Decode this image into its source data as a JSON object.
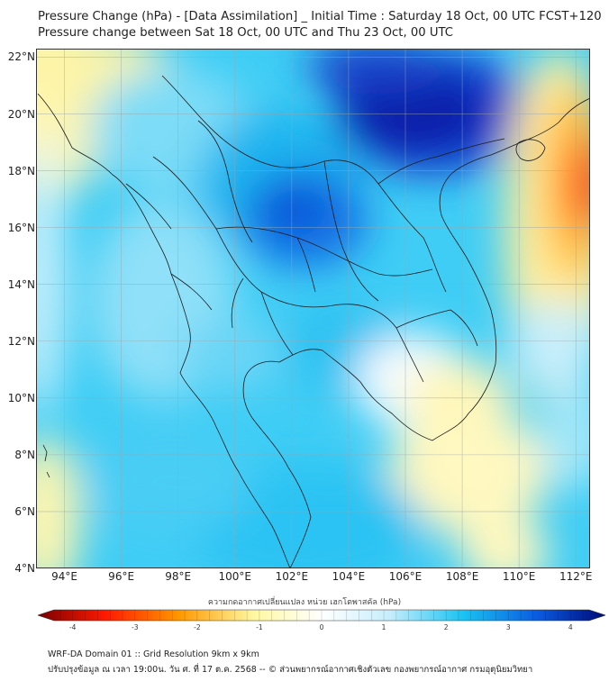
{
  "header": {
    "title_line1": "Pressure Change (hPa) - [Data Assimilation] _ Initial Time : Saturday 18 Oct, 00 UTC FCST+120",
    "title_line2": "Pressure change between Sat 18 Oct, 00 UTC and Thu 23 Oct, 00 UTC"
  },
  "map": {
    "lat_labels": [
      "22°N",
      "20°N",
      "18°N",
      "16°N",
      "14°N",
      "12°N",
      "10°N",
      "8°N",
      "6°N",
      "4°N"
    ],
    "lon_labels": [
      "94°E",
      "96°E",
      "98°E",
      "100°E",
      "102°E",
      "104°E",
      "106°E",
      "108°E",
      "110°E",
      "112°E"
    ],
    "lat_values": [
      22,
      20,
      18,
      16,
      14,
      12,
      10,
      8,
      6,
      4
    ],
    "lon_values": [
      94,
      96,
      98,
      100,
      102,
      104,
      106,
      108,
      110,
      112
    ],
    "lon_range": [
      93,
      112.5
    ],
    "lat_range": [
      4,
      22.3
    ]
  },
  "colorbar": {
    "title": "ความกดอากาศเปลี่ยนแปลง หน่วย เฮกโตพาสคัล (hPa)",
    "tick_labels": [
      "-4",
      "-3",
      "-2",
      "-1",
      "0",
      "1",
      "2",
      "3",
      "4"
    ],
    "tick_values": [
      -4,
      -3,
      -2,
      -1,
      0,
      1,
      2,
      3,
      4
    ],
    "range": [
      -4.3,
      4.3
    ],
    "colors": {
      "dark_red": "#7a0000",
      "red": "#ff1a00",
      "orange": "#ff9900",
      "yellow": "#fff8a0",
      "white": "#ffffff",
      "light_blue": "#c6eefc",
      "cyan": "#19c3f2",
      "blue": "#0a5be0",
      "navy": "#000a78"
    }
  },
  "footer": {
    "line1": "WRF-DA Domain 01 :: Grid Resolution 9km x 9km",
    "line2": "ปรับปรุงข้อมูล ณ เวลา 19:00น. วัน ศ. ที่ 17 ต.ค. 2568 -- © ส่วนพยากรณ์อากาศเชิงตัวเลข กองพยากรณ์อากาศ กรมอุตุนิยมวิทยา"
  }
}
